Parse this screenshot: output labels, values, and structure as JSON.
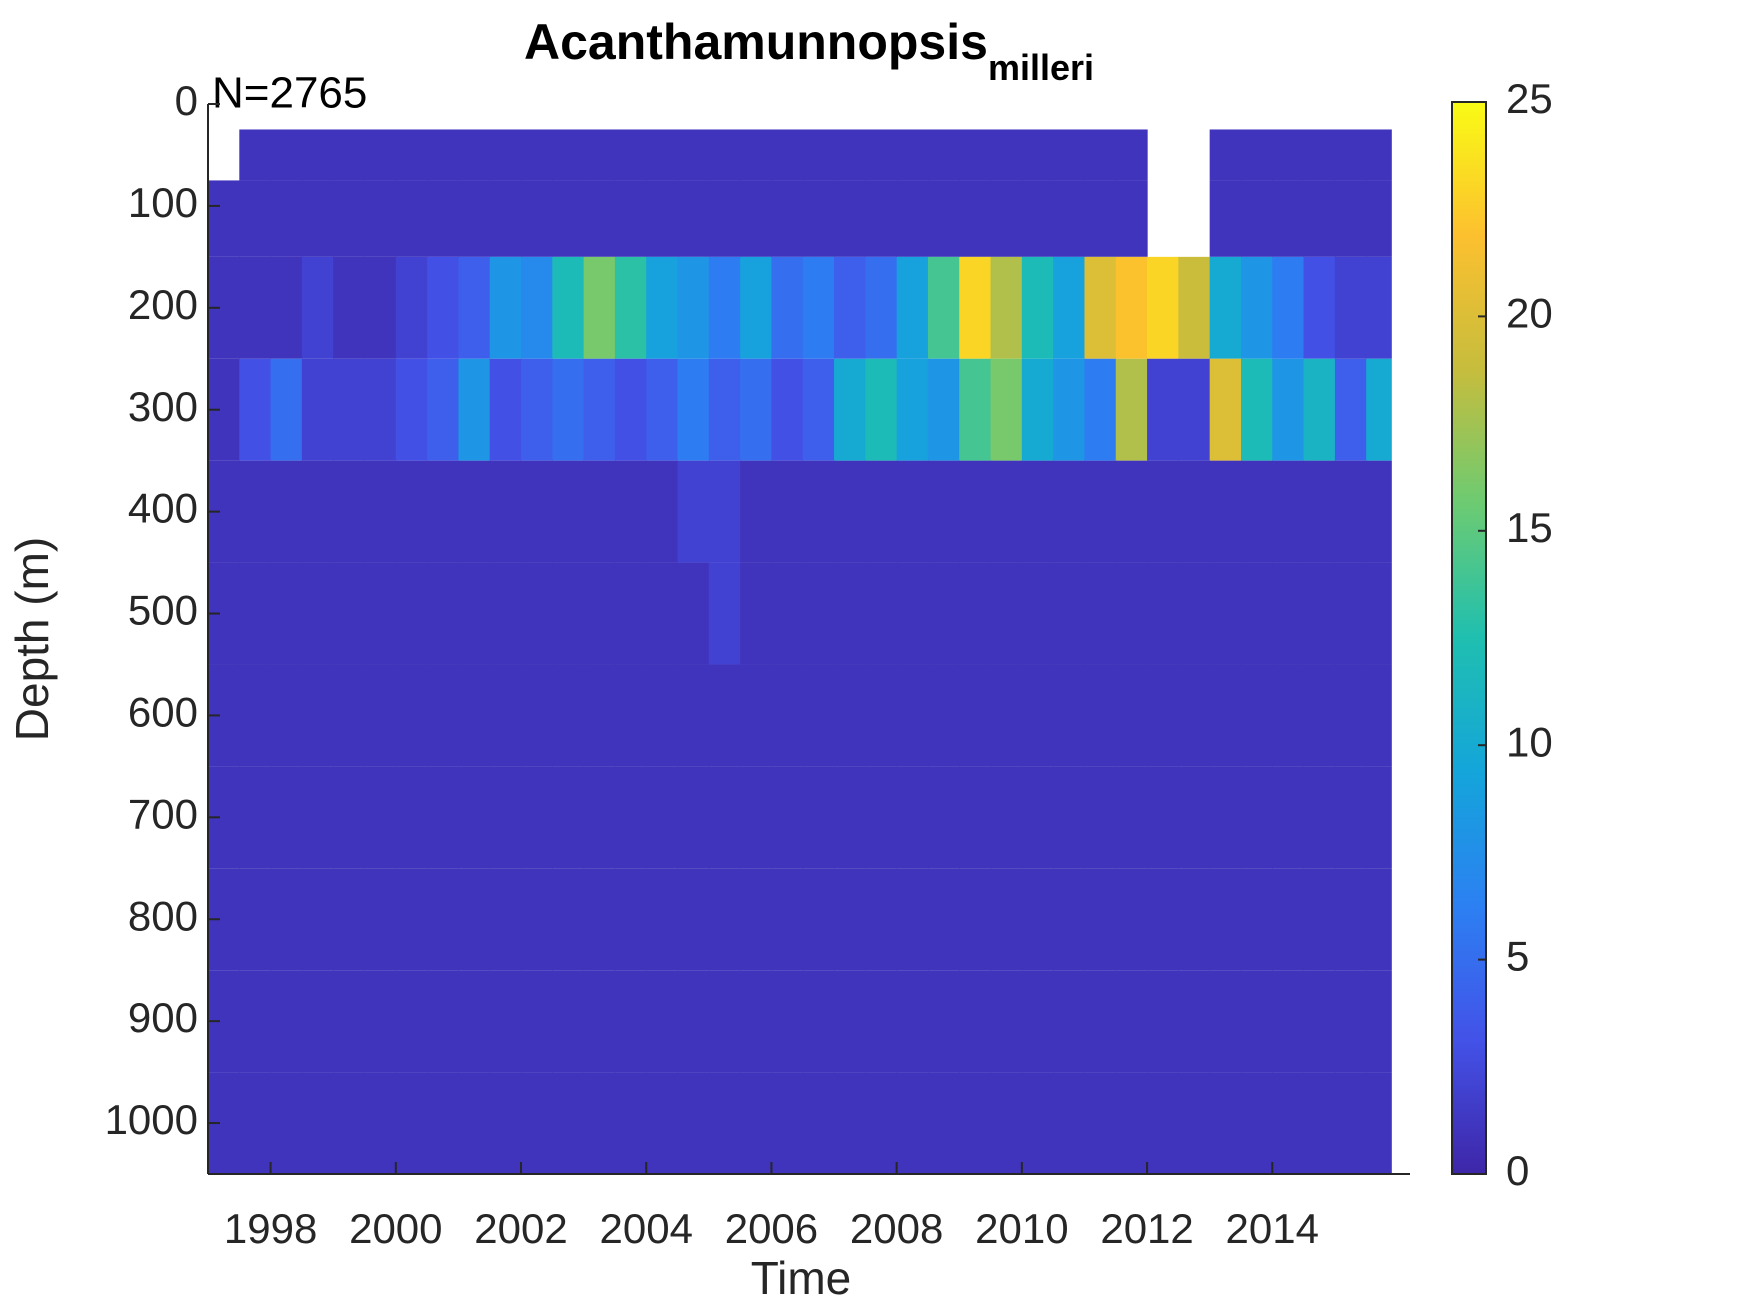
{
  "chart_data": {
    "type": "heatmap",
    "title": "Acanthamunnopsis",
    "title_subscript": "milleri",
    "annotation": "N=2765",
    "xlabel": "Time",
    "ylabel": "Depth (m)",
    "xbins": [
      1997.0,
      1997.5,
      1998.0,
      1998.5,
      1999.0,
      1999.5,
      2000.0,
      2000.5,
      2001.0,
      2001.5,
      2002.0,
      2002.5,
      2003.0,
      2003.5,
      2004.0,
      2004.5,
      2005.0,
      2005.5,
      2006.0,
      2006.5,
      2007.0,
      2007.5,
      2008.0,
      2008.5,
      2009.0,
      2009.5,
      2010.0,
      2010.5,
      2011.0,
      2011.5,
      2012.0,
      2012.5,
      2013.0,
      2013.5,
      2014.0,
      2014.5,
      2015.0,
      2015.5,
      2015.9
    ],
    "ybins": [
      25,
      75,
      150,
      250,
      350,
      450,
      550,
      650,
      750,
      850,
      950,
      1050
    ],
    "values": [
      [
        null,
        1,
        1,
        1,
        1,
        1,
        1,
        1,
        1,
        1,
        1,
        1,
        1,
        1,
        1,
        1,
        1,
        1,
        1,
        1,
        1,
        1,
        1,
        1,
        1,
        1,
        1,
        1,
        1,
        1,
        null,
        null,
        1,
        1,
        1,
        1,
        1,
        1
      ],
      [
        1,
        1,
        1,
        1,
        1,
        1,
        1,
        1,
        1,
        1,
        1,
        1,
        1,
        1,
        1,
        1,
        1,
        1,
        1,
        1,
        1,
        1,
        1,
        1,
        1,
        1,
        1,
        1,
        1,
        1,
        null,
        null,
        1,
        1,
        1,
        1,
        1,
        1
      ],
      [
        1,
        1,
        1,
        2,
        1,
        1,
        2,
        3,
        4,
        8,
        7,
        12,
        16,
        13,
        9,
        8,
        6,
        9,
        5,
        6,
        4,
        5,
        9,
        14,
        23,
        18,
        12,
        9,
        20,
        22,
        23,
        19,
        10,
        8,
        6,
        3,
        2,
        2
      ],
      [
        1,
        3,
        5,
        2,
        2,
        2,
        3,
        4,
        8,
        3,
        4,
        5,
        4,
        3,
        4,
        6,
        4,
        5,
        3,
        4,
        10,
        12,
        9,
        8,
        14,
        16,
        10,
        8,
        6,
        18,
        2,
        2,
        20,
        12,
        8,
        11,
        4,
        10
      ],
      [
        1,
        1,
        1,
        1,
        1,
        1,
        1,
        1,
        1,
        1,
        1,
        1,
        1,
        1,
        1,
        2,
        2,
        1,
        1,
        1,
        1,
        1,
        1,
        1,
        1,
        1,
        1,
        1,
        1,
        1,
        1,
        1,
        1,
        1,
        1,
        1,
        1,
        1
      ],
      [
        1,
        1,
        1,
        1,
        1,
        1,
        1,
        1,
        1,
        1,
        1,
        1,
        1,
        1,
        1,
        1,
        2,
        1,
        1,
        1,
        1,
        1,
        1,
        1,
        1,
        1,
        1,
        1,
        1,
        1,
        1,
        1,
        1,
        1,
        1,
        1,
        1,
        1
      ],
      [
        1,
        1,
        1,
        1,
        1,
        1,
        1,
        1,
        1,
        1,
        1,
        1,
        1,
        1,
        1,
        1,
        1,
        1,
        1,
        1,
        1,
        1,
        1,
        1,
        1,
        1,
        1,
        1,
        1,
        1,
        1,
        1,
        1,
        1,
        1,
        1,
        1,
        1
      ],
      [
        1,
        1,
        1,
        1,
        1,
        1,
        1,
        1,
        1,
        1,
        1,
        1,
        1,
        1,
        1,
        1,
        1,
        1,
        1,
        1,
        1,
        1,
        1,
        1,
        1,
        1,
        1,
        1,
        1,
        1,
        1,
        1,
        1,
        1,
        1,
        1,
        1,
        1
      ],
      [
        1,
        1,
        1,
        1,
        1,
        1,
        1,
        1,
        1,
        1,
        1,
        1,
        1,
        1,
        1,
        1,
        1,
        1,
        1,
        1,
        1,
        1,
        1,
        1,
        1,
        1,
        1,
        1,
        1,
        1,
        1,
        1,
        1,
        1,
        1,
        1,
        1,
        1
      ],
      [
        1,
        1,
        1,
        1,
        1,
        1,
        1,
        1,
        1,
        1,
        1,
        1,
        1,
        1,
        1,
        1,
        1,
        1,
        1,
        1,
        1,
        1,
        1,
        1,
        1,
        1,
        1,
        1,
        1,
        1,
        1,
        1,
        1,
        1,
        1,
        1,
        1,
        1
      ],
      [
        1,
        1,
        1,
        1,
        1,
        1,
        1,
        1,
        1,
        1,
        1,
        1,
        1,
        1,
        1,
        1,
        1,
        1,
        1,
        1,
        1,
        1,
        1,
        1,
        1,
        1,
        1,
        1,
        1,
        1,
        1,
        1,
        1,
        1,
        1,
        1,
        1,
        1
      ]
    ],
    "xlim": [
      1997.0,
      2016.2
    ],
    "xticks": [
      1998,
      2000,
      2002,
      2004,
      2006,
      2008,
      2010,
      2012,
      2014
    ],
    "ylim": [
      0,
      1050
    ],
    "yticks": [
      0,
      100,
      200,
      300,
      400,
      500,
      600,
      700,
      800,
      900,
      1000
    ],
    "y_reversed": true,
    "clim": [
      0,
      25
    ],
    "cticks": [
      0,
      5,
      10,
      15,
      20,
      25
    ],
    "colormap": [
      "#3e26a8",
      "#4352e8",
      "#2c80f2",
      "#14a5da",
      "#1fbfb0",
      "#6ccb72",
      "#c6bd3d",
      "#fcc02f",
      "#f9fb15"
    ]
  }
}
